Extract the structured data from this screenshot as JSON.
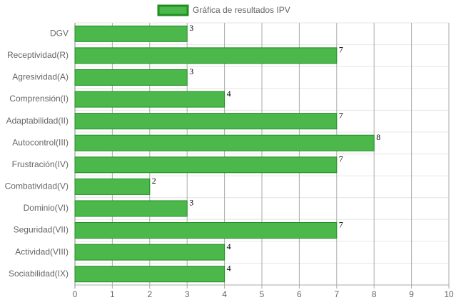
{
  "chart_data": {
    "type": "bar",
    "orientation": "horizontal",
    "categories": [
      "DGV",
      "Receptividad(R)",
      "Agresividad(A)",
      "Comprensión(I)",
      "Adaptabilidad(II)",
      "Autocontrol(III)",
      "Frustración(IV)",
      "Combatividad(V)",
      "Dominio(VI)",
      "Seguridad(VII)",
      "Actividad(VIII)",
      "Sociabilidad(IX)"
    ],
    "series": [
      {
        "name": "Gráfica de resultados IPV",
        "color": "#4cb84c",
        "border_color": "#1f8f1f",
        "values": [
          3,
          7,
          3,
          4,
          7,
          8,
          7,
          2,
          3,
          7,
          4,
          4
        ]
      }
    ],
    "xlim": [
      0,
      10
    ],
    "xticks": [
      0,
      1,
      2,
      3,
      4,
      5,
      6,
      7,
      8,
      9,
      10
    ],
    "grid": true,
    "legend": "top",
    "data_labels": true
  }
}
